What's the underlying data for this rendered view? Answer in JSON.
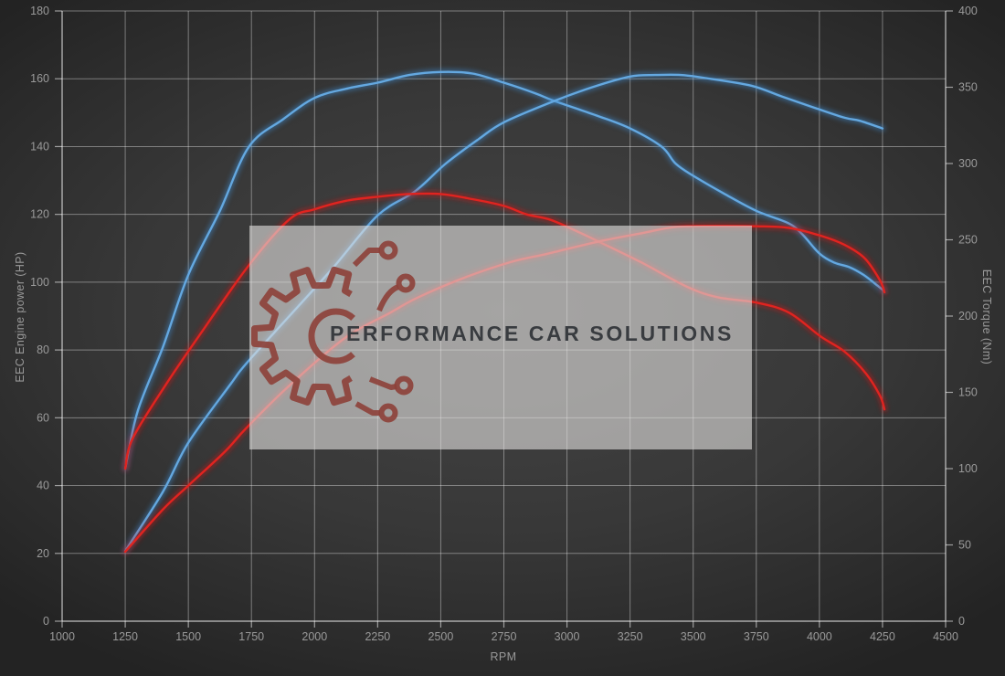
{
  "watermark": {
    "text": "PERFORMANCE CAR SOLUTIONS"
  },
  "colors": {
    "curve_blue": "#64a8e0",
    "curve_blue_glow": "#3c86c8",
    "curve_red": "#e02420",
    "curve_red_glow": "#c41414",
    "grid": "rgba(255,255,255,0.38)",
    "tick_label": "#9a9a9a",
    "watermark_logo": "#8d4038",
    "watermark_text": "#393c40"
  },
  "chart_data": {
    "type": "line",
    "title": "",
    "xlabel": "RPM",
    "ylabel_left": "EEC Engine power (HP)",
    "ylabel_right": "EEC Torque (Nm)",
    "xlim": [
      1000,
      4500
    ],
    "ylim_left": [
      0,
      180
    ],
    "ylim_right": [
      0,
      400
    ],
    "x_ticks": [
      1000,
      1250,
      1500,
      1750,
      2000,
      2250,
      2500,
      2750,
      3000,
      3250,
      3500,
      3750,
      4000,
      4250,
      4500
    ],
    "y_left_ticks": [
      0,
      20,
      40,
      60,
      80,
      100,
      120,
      140,
      160,
      180
    ],
    "y_right_ticks": [
      0,
      50,
      100,
      150,
      200,
      250,
      300,
      350,
      400
    ],
    "grid": true,
    "legend": "none",
    "series": [
      {
        "id": "blue-torque-1",
        "color_key": "blue",
        "axis": "right",
        "unit": "Nm",
        "points": [
          [
            1250,
            100
          ],
          [
            1300,
            138
          ],
          [
            1400,
            180
          ],
          [
            1500,
            227
          ],
          [
            1625,
            269
          ],
          [
            1740,
            311
          ],
          [
            1875,
            329
          ],
          [
            2000,
            343
          ],
          [
            2125,
            349
          ],
          [
            2250,
            353
          ],
          [
            2375,
            358
          ],
          [
            2500,
            360
          ],
          [
            2625,
            359
          ],
          [
            2750,
            353
          ],
          [
            2875,
            346
          ],
          [
            2950,
            341
          ],
          [
            3125,
            331
          ],
          [
            3250,
            323
          ],
          [
            3375,
            311
          ],
          [
            3430,
            300
          ],
          [
            3500,
            292
          ],
          [
            3625,
            280
          ],
          [
            3750,
            269
          ],
          [
            3875,
            261
          ],
          [
            3930,
            254
          ],
          [
            4000,
            241
          ],
          [
            4060,
            235
          ],
          [
            4120,
            232
          ],
          [
            4175,
            227
          ],
          [
            4230,
            220
          ],
          [
            4252,
            217
          ]
        ]
      },
      {
        "id": "blue-torque-2",
        "color_key": "blue",
        "axis": "right",
        "unit": "Nm",
        "points": [
          [
            1250,
            46
          ],
          [
            1400,
            85
          ],
          [
            1500,
            117
          ],
          [
            1670,
            156
          ],
          [
            1730,
            169
          ],
          [
            1900,
            200
          ],
          [
            2070,
            231
          ],
          [
            2250,
            266
          ],
          [
            2400,
            282
          ],
          [
            2520,
            300
          ],
          [
            2650,
            316
          ],
          [
            2750,
            327
          ],
          [
            2950,
            341
          ],
          [
            3100,
            350
          ],
          [
            3250,
            357
          ],
          [
            3350,
            358
          ],
          [
            3450,
            358
          ],
          [
            3550,
            356
          ],
          [
            3730,
            351
          ],
          [
            3850,
            344
          ],
          [
            3990,
            336
          ],
          [
            4100,
            330
          ],
          [
            4160,
            328
          ],
          [
            4250,
            323
          ]
        ]
      },
      {
        "id": "red-power-1",
        "color_key": "red",
        "axis": "left",
        "unit": "HP",
        "points": [
          [
            1250,
            45
          ],
          [
            1280,
            54
          ],
          [
            1413,
            70
          ],
          [
            1550,
            85
          ],
          [
            1740,
            105
          ],
          [
            1900,
            118.5
          ],
          [
            2000,
            121.5
          ],
          [
            2125,
            124
          ],
          [
            2250,
            125.2
          ],
          [
            2375,
            126
          ],
          [
            2500,
            126
          ],
          [
            2625,
            124.5
          ],
          [
            2750,
            122.5
          ],
          [
            2840,
            120
          ],
          [
            2930,
            118.5
          ],
          [
            3025,
            115.5
          ],
          [
            3125,
            112
          ],
          [
            3290,
            106
          ],
          [
            3480,
            98.5
          ],
          [
            3600,
            95.5
          ],
          [
            3750,
            94
          ],
          [
            3880,
            91
          ],
          [
            4005,
            84
          ],
          [
            4100,
            79.5
          ],
          [
            4185,
            73
          ],
          [
            4240,
            66.5
          ],
          [
            4258,
            62.5
          ]
        ]
      },
      {
        "id": "red-power-2",
        "color_key": "red",
        "axis": "left",
        "unit": "HP",
        "points": [
          [
            1250,
            20.5
          ],
          [
            1400,
            33
          ],
          [
            1500,
            40
          ],
          [
            1645,
            50
          ],
          [
            1730,
            57
          ],
          [
            1900,
            69.5
          ],
          [
            2120,
            83.5
          ],
          [
            2300,
            91
          ],
          [
            2410,
            95.5
          ],
          [
            2600,
            101.5
          ],
          [
            2780,
            106
          ],
          [
            2930,
            108.5
          ],
          [
            3125,
            112
          ],
          [
            3300,
            114.5
          ],
          [
            3430,
            116.3
          ],
          [
            3600,
            116.6
          ],
          [
            3750,
            116.5
          ],
          [
            3880,
            116
          ],
          [
            4005,
            113.7
          ],
          [
            4100,
            111
          ],
          [
            4180,
            107
          ],
          [
            4240,
            100.5
          ],
          [
            4258,
            97
          ]
        ]
      }
    ]
  }
}
